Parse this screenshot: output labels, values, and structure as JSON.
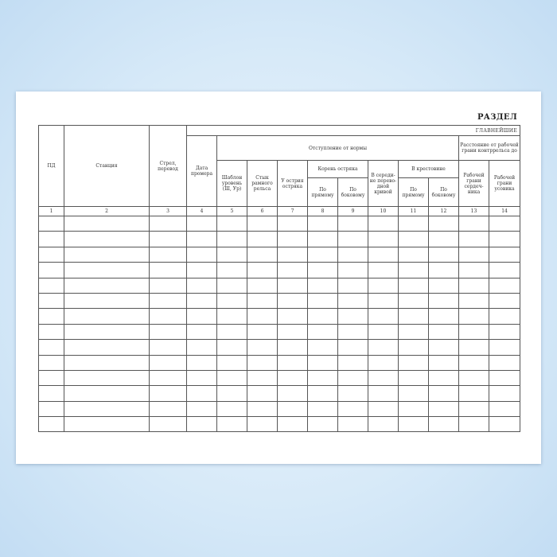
{
  "section_title": "РАЗДЕЛ",
  "header": {
    "group_main": "ГЛАВНЕЙШИЕ",
    "pd": "ПД",
    "station": "Станция",
    "switch": "Стрел, перевод",
    "date": "Дата промера",
    "deviation": "Отступление от нормы",
    "distance": "Расстояние от рабочей грани контррельса до",
    "gauge": "Шаблон уровень (Ш, Ур)",
    "joint": "Стык рамного рельса",
    "tip": "У острия остряка",
    "root": "Корень остряка",
    "middle": "В середи-не перево-дной кривой",
    "frog": "В крестовине",
    "straight": "По прямому",
    "side": "По боковому",
    "core": "Рабочей грани сердеч-ника",
    "wing": "Рабочей грани усовика"
  },
  "column_numbers": [
    "1",
    "2",
    "3",
    "4",
    "5",
    "6",
    "7",
    "8",
    "9",
    "10",
    "11",
    "12",
    "13",
    "14"
  ],
  "empty_rows": 14
}
